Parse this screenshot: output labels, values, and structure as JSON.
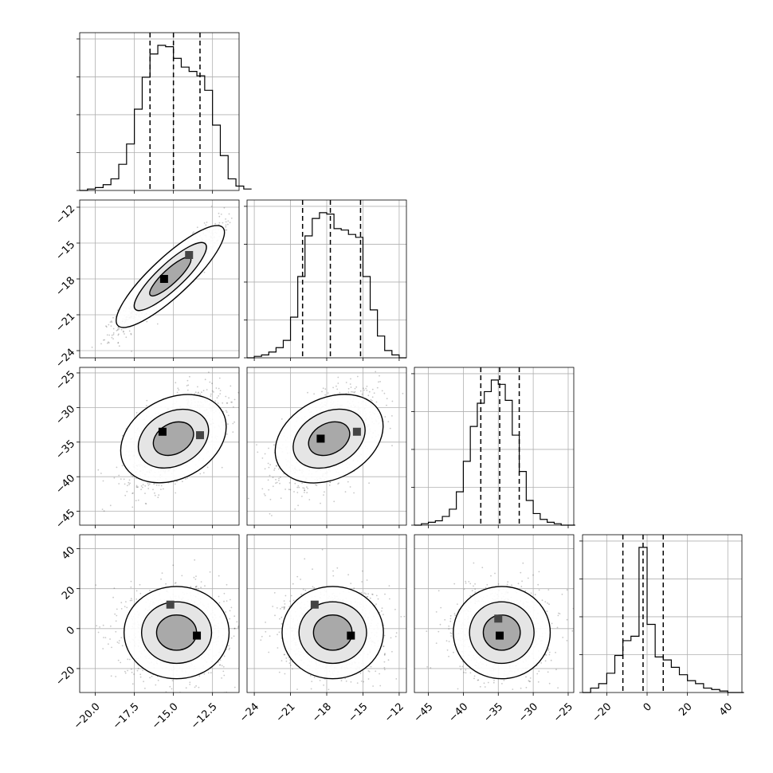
{
  "chart_data": {
    "type": "corner",
    "title": "",
    "grid": true,
    "colors": {
      "line": "#000000",
      "grid": "#b0b0b0",
      "scatter": "#000000"
    },
    "params": [
      {
        "range": [
          -21.0,
          -10.8
        ],
        "ticks": [
          "-20.0",
          "-17.5",
          "-15.0",
          "-12.5"
        ],
        "tick_values": [
          -20.0,
          -17.5,
          -15.0,
          -12.5
        ],
        "quantiles": [
          -16.5,
          -15.0,
          -13.3
        ],
        "hist_edges_start": -21.0,
        "hist_bin_width": 0.5,
        "hist_counts": [
          0,
          1,
          2,
          4,
          8,
          18,
          32,
          56,
          78,
          94,
          100,
          99,
          91,
          85,
          82,
          79,
          69,
          45,
          24,
          8,
          3,
          1
        ]
      },
      {
        "range": [
          -24.6,
          -11.4
        ],
        "ticks": [
          "-24",
          "-21",
          "-18",
          "-15",
          "-12"
        ],
        "tick_values": [
          -24,
          -21,
          -18,
          -15,
          -12
        ],
        "quantiles": [
          -20.0,
          -17.7,
          -15.2
        ],
        "hist_edges_start": -24.6,
        "hist_bin_width": 0.6,
        "hist_counts": [
          0,
          1,
          2,
          4,
          7,
          12,
          28,
          56,
          84,
          96,
          100,
          99,
          89,
          88,
          85,
          83,
          56,
          33,
          15,
          5,
          2,
          0
        ]
      },
      {
        "range": [
          -47.0,
          -24.2
        ],
        "ticks": [
          "-45",
          "-40",
          "-35",
          "-30",
          "-25"
        ],
        "tick_values": [
          -45,
          -40,
          -35,
          -30,
          -25
        ],
        "quantiles": [
          -37.5,
          -34.8,
          -32.0
        ],
        "hist_edges_start": -47.0,
        "hist_bin_width": 1.0,
        "hist_counts": [
          0,
          1,
          2,
          3,
          6,
          11,
          23,
          44,
          68,
          84,
          92,
          100,
          97,
          86,
          62,
          37,
          17,
          8,
          4,
          2,
          1,
          0,
          0
        ]
      },
      {
        "range": [
          -32.0,
          47.0
        ],
        "ticks": [
          "-20",
          "0",
          "20",
          "40"
        ],
        "tick_values": [
          -20,
          0,
          20,
          40
        ],
        "quantiles": [
          -12.0,
          -2.0,
          8.0
        ],
        "hist_edges_start": -32.0,
        "hist_bin_width": 4.0,
        "hist_counts": [
          0,
          3,
          6,
          13,
          25,
          35,
          38,
          98,
          46,
          24,
          22,
          17,
          12,
          8,
          6,
          3,
          2,
          1,
          0,
          0
        ]
      }
    ],
    "ytick_params": [
      null,
      {
        "ticks": [
          "-12",
          "-15",
          "-18",
          "-21",
          "-24"
        ],
        "tick_values": [
          -12,
          -15,
          -18,
          -21,
          -24
        ]
      },
      {
        "ticks": [
          "-25",
          "-30",
          "-35",
          "-40",
          "-45"
        ],
        "tick_values": [
          -25,
          -30,
          -35,
          -40,
          -45
        ]
      },
      {
        "ticks": [
          "40",
          "20",
          "0",
          "-20"
        ],
        "tick_values": [
          40,
          20,
          0,
          -20
        ]
      }
    ],
    "pairs": [
      {
        "i": 0,
        "j": 1,
        "mean": [
          -15.2,
          -17.8
        ],
        "sd": [
          1.6,
          2.1
        ],
        "rho": 0.93,
        "mode_peaks": [
          [
            -15.6,
            -18.0
          ],
          [
            -14.0,
            -16.0
          ]
        ]
      },
      {
        "i": 0,
        "j": 2,
        "mean": [
          -15.0,
          -34.5
        ],
        "sd": [
          1.5,
          3.3
        ],
        "rho": 0.55,
        "mode_peaks": [
          [
            -15.7,
            -33.5
          ],
          [
            -13.3,
            -34.0
          ]
        ]
      },
      {
        "i": 1,
        "j": 2,
        "mean": [
          -17.8,
          -34.5
        ],
        "sd": [
          2.0,
          3.3
        ],
        "rho": 0.55,
        "mode_peaks": [
          [
            -18.5,
            -34.5
          ],
          [
            -15.5,
            -33.5
          ]
        ]
      },
      {
        "i": 0,
        "j": 3,
        "mean": [
          -14.8,
          -2.0
        ],
        "sd": [
          1.6,
          11.0
        ],
        "rho": 0.0,
        "mode_peaks": [
          [
            -13.5,
            -3.5
          ],
          [
            -15.2,
            12.0
          ]
        ]
      },
      {
        "i": 1,
        "j": 3,
        "mean": [
          -17.5,
          -2.0
        ],
        "sd": [
          2.0,
          11.0
        ],
        "rho": 0.0,
        "mode_peaks": [
          [
            -16.0,
            -3.5
          ],
          [
            -19.0,
            12.0
          ]
        ]
      },
      {
        "i": 2,
        "j": 3,
        "mean": [
          -34.5,
          -2.0
        ],
        "sd": [
          3.3,
          11.0
        ],
        "rho": 0.0,
        "mode_peaks": [
          [
            -34.8,
            -3.5
          ],
          [
            -35.0,
            5.0
          ]
        ]
      }
    ]
  }
}
